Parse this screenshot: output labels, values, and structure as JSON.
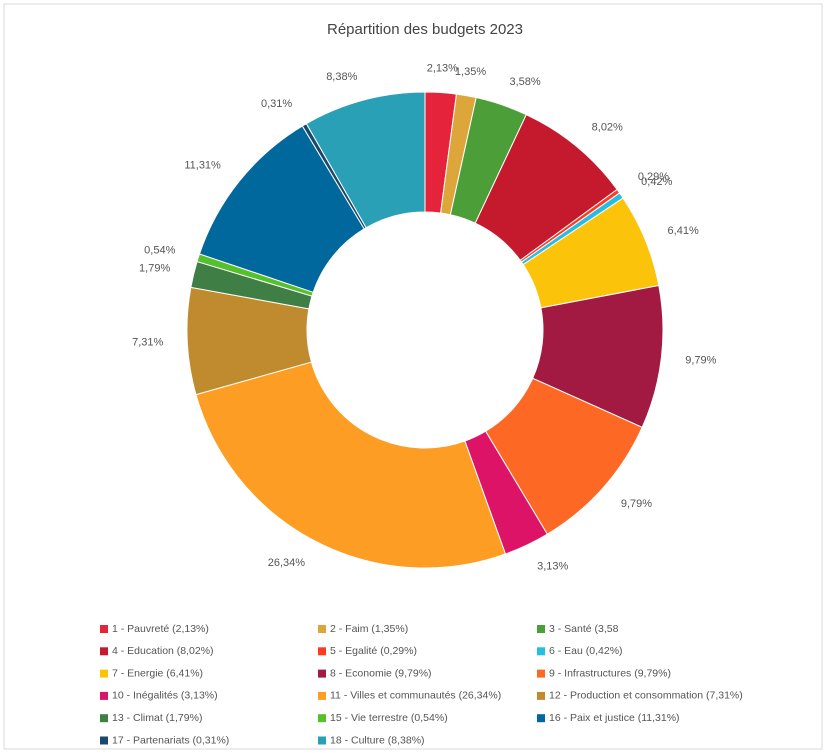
{
  "chart_data": {
    "type": "donut",
    "title": "Répartition des budgets 2023",
    "categories": [
      "1 - Pauvreté (2,13%)",
      "2 - Faim (1,35%)",
      "3 - Santé (3,58",
      "4 - Education (8,02%)",
      "5 - Egalité (0,29%)",
      "6 - Eau (0,42%)",
      "7 - Energie (6,41%)",
      "8 - Economie (9,79%)",
      "9 - Infrastructures (9,79%)",
      "10 - Inégalités (3,13%)",
      "11 - Villes et communautés (26,34%)",
      "12 - Production et consommation (7,31%)",
      "13 - Climat (1,79%)",
      "15 - Vie terrestre (0,54%)",
      "16 - Paix et justice (11,31%)",
      "17 - Partenariats (0,31%)",
      "18 - Culture (8,38%)"
    ],
    "values": [
      2.13,
      1.35,
      3.58,
      8.02,
      0.29,
      0.42,
      6.41,
      9.79,
      9.79,
      3.13,
      26.34,
      7.31,
      1.79,
      0.54,
      11.31,
      0.31,
      8.38
    ],
    "value_labels": [
      "2,13%",
      "1,35%",
      "3,58%",
      "8,02%",
      "0,29%",
      "0,42%",
      "6,41%",
      "9,79%",
      "9,79%",
      "3,13%",
      "26,34%",
      "7,31%",
      "1,79%",
      "0,54%",
      "11,31%",
      "0,31%",
      "8,38%"
    ],
    "colors": [
      "#e5243b",
      "#dda63a",
      "#4c9f38",
      "#c5192d",
      "#ff3a21",
      "#26bde2",
      "#fcc30b",
      "#a21942",
      "#fd6925",
      "#dd1367",
      "#fd9d24",
      "#bf8b2e",
      "#3f7e44",
      "#56c02b",
      "#00689d",
      "#19486a",
      "#2aa0b6"
    ],
    "legend": "bottom"
  }
}
